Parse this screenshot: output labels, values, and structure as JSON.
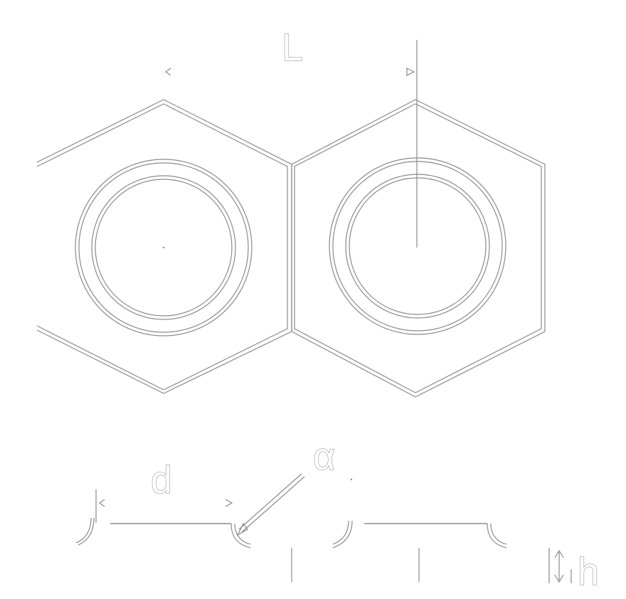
{
  "diagram": {
    "labels": {
      "length": "L",
      "spacing": "d",
      "angle": "α",
      "height": "h"
    },
    "colors": {
      "line": "#8a8a8a",
      "label_outline": "#9a9a9a",
      "background": "#ffffff"
    }
  }
}
